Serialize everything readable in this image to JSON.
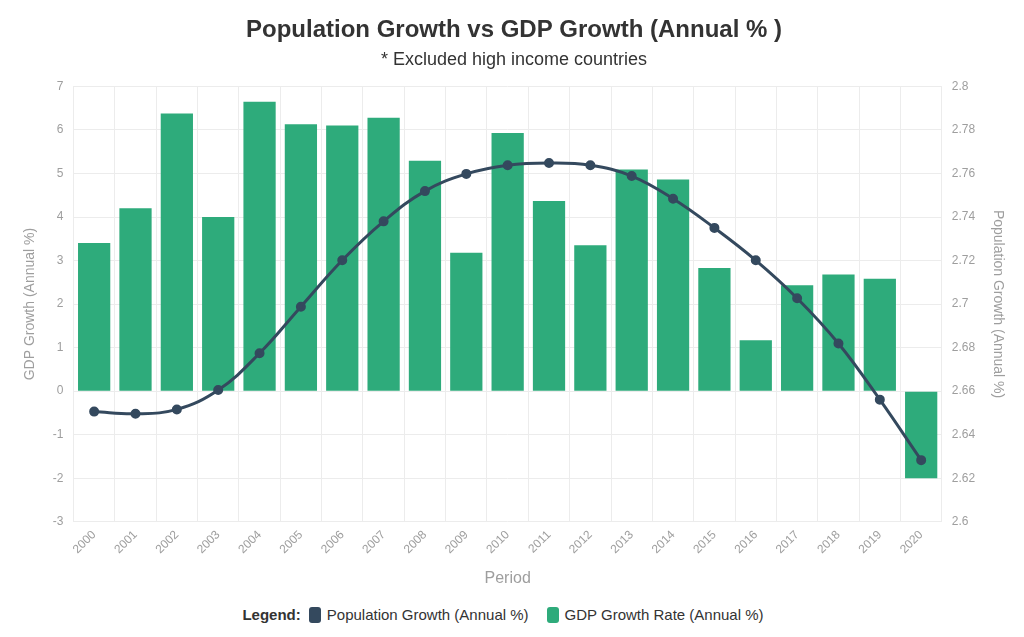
{
  "chart_data": {
    "type": "bar",
    "title": "Population Growth vs GDP Growth (Annual % )",
    "subtitle": "* Excluded high income countries",
    "x_label": "Period",
    "y_label": "GDP Growth (Annual %)",
    "y2_label": "Population Growth (Annual %)",
    "legend_title": "Legend:",
    "legend": "bottom",
    "grid": true,
    "categories": [
      "2000",
      "2001",
      "2002",
      "2003",
      "2004",
      "2005",
      "2006",
      "2007",
      "2008",
      "2009",
      "2010",
      "2011",
      "2012",
      "2013",
      "2014",
      "2015",
      "2016",
      "2017",
      "2018",
      "2019",
      "2020"
    ],
    "series": [
      {
        "name": "Population Growth (Annual %)",
        "type": "line",
        "axis": "y2",
        "color": "#34495e",
        "marker": "circle",
        "line_style": "solid",
        "values": [
          2.6506,
          2.6496,
          2.6516,
          2.6605,
          2.6774,
          2.6988,
          2.7201,
          2.738,
          2.7519,
          2.7598,
          2.7638,
          2.7648,
          2.7638,
          2.7588,
          2.7484,
          2.735,
          2.7201,
          2.7027,
          2.6819,
          2.6561,
          2.6283
        ]
      },
      {
        "name": "GDP Growth Rate (Annual %)",
        "type": "bar",
        "color": "#2eab7b",
        "values": [
          3.4,
          4.2,
          6.38,
          4.0,
          6.65,
          6.13,
          6.1,
          6.28,
          5.29,
          3.18,
          5.93,
          4.37,
          3.35,
          5.09,
          4.86,
          2.83,
          1.17,
          2.43,
          2.68,
          2.58,
          -2.0
        ]
      }
    ],
    "ylim": [
      -3,
      7
    ],
    "yticks": [
      -3,
      -2,
      -1,
      0,
      1,
      2,
      3,
      4,
      5,
      6,
      7
    ],
    "y2lim": [
      2.6,
      2.8
    ],
    "y2ticks": [
      2.6,
      2.62,
      2.64,
      2.66,
      2.68,
      2.7,
      2.72,
      2.74,
      2.76,
      2.78,
      2.8
    ]
  }
}
